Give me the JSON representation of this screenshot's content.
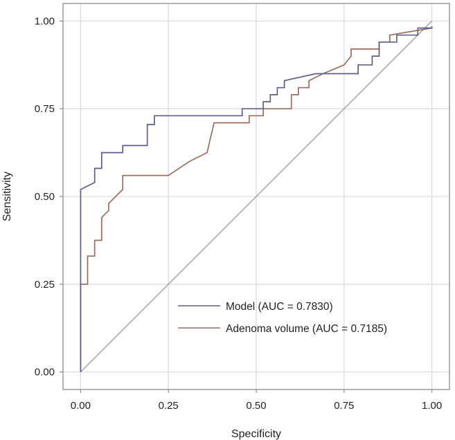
{
  "chart_data": {
    "type": "line",
    "title": "",
    "xlabel": "Specificity",
    "ylabel": "Sensitivity",
    "xlim": [
      -0.05,
      1.05
    ],
    "ylim": [
      -0.05,
      1.05
    ],
    "grid": true,
    "x_ticks": [
      0.0,
      0.25,
      0.5,
      0.75,
      1.0
    ],
    "y_ticks": [
      0.0,
      0.25,
      0.5,
      0.75,
      1.0
    ],
    "x_tick_labels": [
      "0.00",
      "0.25",
      "0.50",
      "0.75",
      "1.00"
    ],
    "y_tick_labels": [
      "0.00",
      "0.25",
      "0.50",
      "0.75",
      "1.00"
    ],
    "legend_position": "bottom-right",
    "reference_line": {
      "name": "chance",
      "x": [
        0,
        1
      ],
      "y": [
        0,
        1
      ],
      "color": "#a8a8a8"
    },
    "series": [
      {
        "name": "Model (AUC = 0.7830)",
        "color": "#5c5f8c",
        "x": [
          0,
          0,
          0.04,
          0.04,
          0.06,
          0.06,
          0.12,
          0.12,
          0.19,
          0.19,
          0.21,
          0.21,
          0.46,
          0.46,
          0.52,
          0.52,
          0.54,
          0.54,
          0.56,
          0.56,
          0.58,
          0.58,
          0.67,
          0.67,
          0.79,
          0.79,
          0.83,
          0.83,
          0.85,
          0.85,
          0.9,
          0.9,
          0.96,
          0.96,
          1.0,
          1.0
        ],
        "y": [
          0,
          0.52,
          0.54,
          0.58,
          0.58,
          0.625,
          0.625,
          0.645,
          0.645,
          0.705,
          0.705,
          0.73,
          0.73,
          0.75,
          0.75,
          0.77,
          0.77,
          0.79,
          0.79,
          0.81,
          0.81,
          0.83,
          0.85,
          0.85,
          0.85,
          0.875,
          0.875,
          0.9,
          0.9,
          0.94,
          0.94,
          0.96,
          0.96,
          0.98,
          0.98,
          0.985
        ]
      },
      {
        "name": "Adenoma volume (AUC = 0.7185)",
        "color": "#9c6b5e",
        "x": [
          0,
          0,
          0.02,
          0.02,
          0.04,
          0.04,
          0.06,
          0.06,
          0.08,
          0.08,
          0.12,
          0.12,
          0.25,
          0.31,
          0.36,
          0.38,
          0.38,
          0.48,
          0.48,
          0.52,
          0.52,
          0.54,
          0.54,
          0.6,
          0.6,
          0.62,
          0.62,
          0.65,
          0.65,
          0.69,
          0.69,
          0.75,
          0.75,
          0.77,
          0.77,
          0.85,
          0.85,
          0.88,
          0.88,
          1.0
        ],
        "y": [
          0,
          0.25,
          0.25,
          0.33,
          0.33,
          0.375,
          0.375,
          0.44,
          0.46,
          0.48,
          0.52,
          0.56,
          0.56,
          0.6,
          0.625,
          0.71,
          0.71,
          0.71,
          0.73,
          0.73,
          0.75,
          0.75,
          0.75,
          0.75,
          0.79,
          0.79,
          0.81,
          0.81,
          0.83,
          0.85,
          0.85,
          0.875,
          0.875,
          0.9,
          0.92,
          0.92,
          0.94,
          0.94,
          0.96,
          0.98
        ]
      }
    ]
  }
}
